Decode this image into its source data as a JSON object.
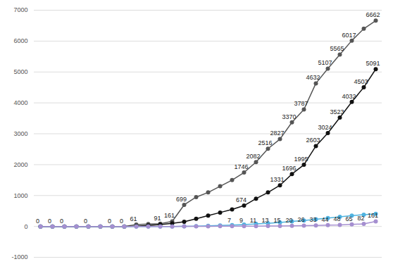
{
  "chart_data": {
    "type": "line",
    "categories": [
      null,
      null,
      null,
      null,
      null,
      null,
      null,
      null,
      null,
      null,
      null,
      null,
      null,
      null,
      null,
      null,
      null,
      null,
      null,
      null,
      null,
      null,
      null,
      null,
      null,
      null,
      null,
      null,
      null
    ],
    "ylim": [
      -1000,
      7000
    ],
    "yticks": [
      -1000,
      0,
      1000,
      2000,
      3000,
      4000,
      5000,
      6000,
      7000
    ],
    "grid": true,
    "tick_labels": "y",
    "data_labels": true,
    "marker": "circle",
    "series": [
      {
        "color": "#555555",
        "values": [
          0,
          0,
          0,
          0,
          0,
          0,
          0,
          0,
          61,
          75,
          91,
          161,
          699,
          950,
          1100,
          1300,
          1500,
          1746,
          2082,
          2516,
          2827,
          3370,
          3787,
          4632,
          5107,
          5565,
          6017,
          6400,
          6662
        ],
        "value_labels": [
          "0",
          "0",
          "0",
          null,
          "0",
          null,
          "0",
          "0",
          "61",
          null,
          "91",
          "161",
          "699",
          null,
          null,
          null,
          null,
          "1746",
          "2082",
          "2516",
          "2827",
          "3370",
          "3787",
          "4632",
          "5107",
          "5565",
          "6017",
          null,
          "6662"
        ]
      },
      {
        "color": "#111111",
        "values": [
          0,
          0,
          0,
          0,
          0,
          0,
          0,
          0,
          10,
          30,
          60,
          100,
          150,
          250,
          350,
          450,
          550,
          674,
          900,
          1100,
          1331,
          1696,
          1995,
          2603,
          3024,
          3523,
          4032,
          4503,
          5091
        ],
        "value_labels": [
          null,
          null,
          null,
          null,
          null,
          null,
          null,
          null,
          null,
          null,
          null,
          null,
          null,
          null,
          null,
          null,
          null,
          "674",
          null,
          null,
          "1331",
          "1696",
          "1995",
          "2603",
          "3024",
          "3523",
          "4032",
          "4503",
          "5091"
        ]
      },
      {
        "color": "#4fb3e0",
        "values": [
          0,
          0,
          0,
          0,
          0,
          0,
          0,
          0,
          0,
          0,
          0,
          0,
          5,
          10,
          20,
          30,
          45,
          60,
          80,
          100,
          130,
          160,
          190,
          230,
          270,
          310,
          350,
          380,
          410
        ],
        "value_labels": [
          null,
          null,
          null,
          null,
          null,
          null,
          null,
          null,
          null,
          null,
          null,
          null,
          null,
          null,
          null,
          null,
          null,
          null,
          null,
          null,
          null,
          null,
          null,
          null,
          null,
          null,
          null,
          null,
          null
        ]
      },
      {
        "color": "#a58fd0",
        "values": [
          0,
          0,
          0,
          0,
          0,
          0,
          0,
          0,
          0,
          0,
          0,
          0,
          2,
          3,
          5,
          6,
          7,
          9,
          11,
          13,
          15,
          20,
          26,
          33,
          44,
          48,
          65,
          82,
          161
        ],
        "value_labels": [
          null,
          null,
          null,
          null,
          null,
          null,
          null,
          null,
          null,
          null,
          null,
          null,
          null,
          null,
          null,
          null,
          "7",
          "9",
          "11",
          "13",
          "15",
          "20",
          "26",
          "33",
          "44",
          "48",
          "65",
          "82",
          "161"
        ]
      }
    ]
  }
}
